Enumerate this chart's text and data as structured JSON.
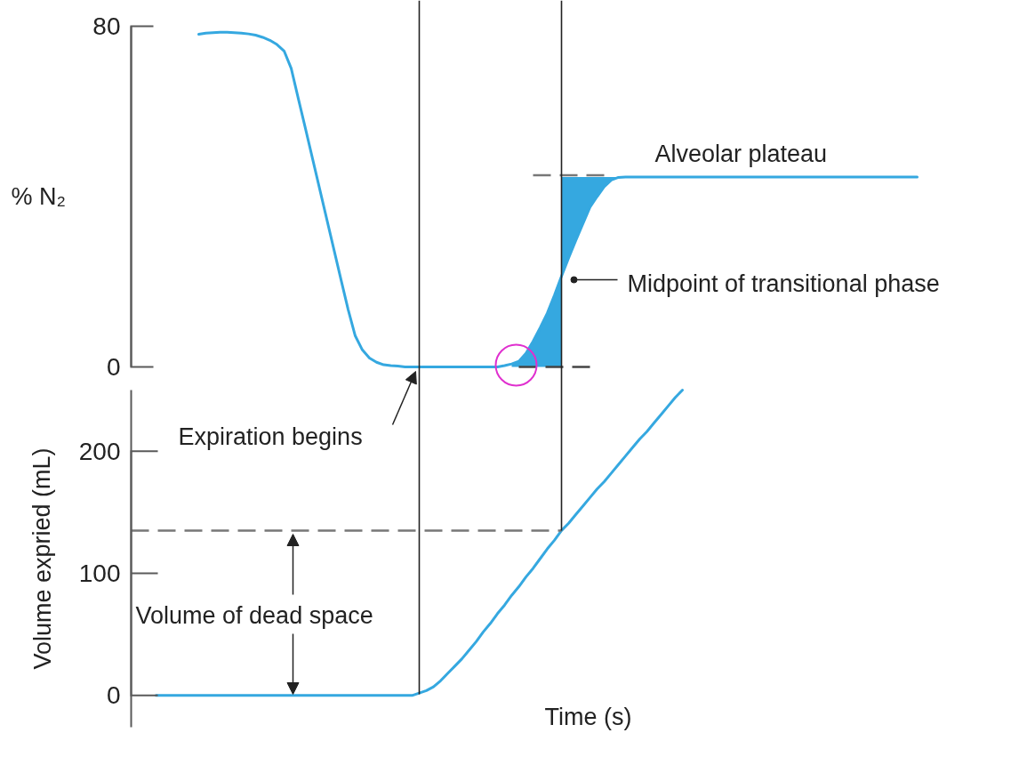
{
  "chart_data": [
    {
      "type": "line",
      "ylim": [
        0,
        80
      ],
      "yticks": [
        0,
        80
      ],
      "tick_labels": "y",
      "ylabel": "% N₂",
      "annotations": [
        "Alveolar plateau",
        "Midpoint of transitional phase",
        "Expiration begins"
      ],
      "categories": [
        null,
        null,
        null,
        null,
        null,
        null,
        null,
        null,
        null,
        null,
        null,
        null,
        null,
        null,
        null,
        null,
        null,
        null,
        null,
        null,
        null,
        null,
        null,
        null,
        null,
        null,
        null,
        null,
        null,
        null,
        null,
        null,
        null,
        null,
        null,
        null,
        null,
        null,
        null,
        null,
        null,
        null,
        null,
        null,
        null,
        null,
        null,
        null,
        null,
        null,
        null,
        null,
        null,
        null,
        null,
        null,
        null,
        null,
        null,
        null,
        null,
        null,
        null,
        null,
        null,
        null,
        null,
        null,
        null,
        null,
        null,
        null,
        null,
        null,
        null,
        null,
        null,
        null,
        null,
        null,
        null,
        null,
        null,
        null,
        null,
        null,
        null,
        null,
        null,
        null,
        null,
        null,
        null,
        null,
        null,
        null,
        null,
        null,
        null,
        null,
        null,
        null,
        null,
        null,
        null,
        null,
        null,
        null,
        null,
        null,
        null
      ],
      "series": [
        {
          "color": "#35a8e0",
          "values": [
            null,
            null,
            null,
            null,
            null,
            null,
            null,
            null,
            null,
            78.1,
            78.4,
            78.5,
            78.6,
            78.6,
            78.5,
            78.4,
            78.2,
            77.9,
            77.4,
            76.7,
            75.7,
            74.2,
            70.1,
            63.0,
            56.0,
            48.9,
            41.8,
            34.7,
            27.6,
            20.5,
            13.5,
            7.3,
            4.0,
            2.1,
            1.1,
            0.5,
            0.3,
            0.2,
            0,
            0,
            0,
            0,
            0,
            0,
            0,
            0,
            0,
            0,
            0,
            0,
            0,
            0,
            0.3,
            0.7,
            1.3,
            3.2,
            6.0,
            9.2,
            12.6,
            16.8,
            21.3,
            25.6,
            29.7,
            33.6,
            37.5,
            40.0,
            42.3,
            43.9,
            44.5,
            44.6,
            44.6,
            44.6,
            44.6,
            44.6,
            44.6,
            44.6,
            44.6,
            44.6,
            44.6,
            44.6,
            44.6,
            44.6,
            44.6,
            44.6,
            44.6,
            44.6,
            44.6,
            44.6,
            44.6,
            44.6,
            44.6,
            44.6,
            44.6,
            44.6,
            44.6,
            44.6,
            44.6,
            44.6,
            44.6,
            44.6,
            44.6,
            44.6,
            44.6,
            44.6,
            44.6,
            44.6,
            44.6,
            44.6,
            44.6,
            44.6,
            44.6
          ],
          "lower": [
            null,
            null,
            null,
            null,
            null,
            null,
            null,
            null,
            null,
            null,
            null,
            null,
            null,
            null,
            null,
            null,
            null,
            null,
            null,
            null,
            null,
            null,
            null,
            null,
            null,
            null,
            null,
            null,
            null,
            null,
            null,
            null,
            null,
            null,
            null,
            null,
            null,
            null,
            null,
            null,
            null,
            null,
            null,
            null,
            null,
            null,
            null,
            null,
            null,
            null,
            null,
            null,
            null,
            null,
            null,
            null,
            null,
            null,
            null,
            null,
            21.3,
            25.6,
            29.7,
            33.6,
            37.5,
            40.0,
            42.3,
            43.9,
            44.5,
            null,
            null,
            null,
            null,
            null,
            null,
            null,
            null,
            null,
            null,
            null,
            null,
            null,
            null,
            null,
            null,
            null,
            null,
            null,
            null,
            null,
            null,
            null,
            null,
            null,
            null,
            null,
            null,
            null,
            null,
            null,
            null,
            null,
            null,
            null,
            null,
            null,
            null,
            null,
            null,
            null,
            null
          ],
          "upper": [
            null,
            null,
            null,
            null,
            null,
            null,
            null,
            null,
            null,
            null,
            null,
            null,
            null,
            null,
            null,
            null,
            null,
            null,
            null,
            null,
            null,
            null,
            null,
            null,
            null,
            null,
            null,
            null,
            null,
            null,
            null,
            null,
            null,
            null,
            null,
            null,
            null,
            null,
            null,
            null,
            null,
            null,
            null,
            null,
            null,
            null,
            null,
            null,
            null,
            null,
            null,
            null,
            null,
            null,
            null,
            null,
            null,
            null,
            null,
            null,
            44.6,
            44.6,
            44.6,
            44.6,
            44.6,
            44.6,
            44.6,
            44.6,
            44.6,
            null,
            null,
            null,
            null,
            null,
            null,
            null,
            null,
            null,
            null,
            null,
            null,
            null,
            null,
            null,
            null,
            null,
            null,
            null,
            null,
            null,
            null,
            null,
            null,
            null,
            null,
            null,
            null,
            null,
            null,
            null,
            null,
            null,
            null,
            null,
            null,
            null,
            null,
            null,
            null,
            null,
            null
          ]
        },
        {
          "type": "area",
          "color": "#35a8e0",
          "values": [
            null,
            null,
            null,
            null,
            null,
            null,
            null,
            null,
            null,
            null,
            null,
            null,
            null,
            null,
            null,
            null,
            null,
            null,
            null,
            null,
            null,
            null,
            null,
            null,
            null,
            null,
            null,
            null,
            null,
            null,
            null,
            null,
            null,
            null,
            null,
            null,
            null,
            null,
            null,
            null,
            null,
            null,
            null,
            null,
            null,
            null,
            null,
            null,
            null,
            null,
            null,
            null,
            null,
            0.7,
            1.3,
            3.2,
            6.0,
            9.2,
            12.6,
            16.8,
            21.3,
            null,
            null,
            null,
            null,
            null,
            null,
            null,
            null,
            null,
            null,
            null,
            null,
            null,
            null,
            null,
            null,
            null,
            null,
            null,
            null,
            null,
            null,
            null,
            null,
            null,
            null,
            null,
            null,
            null,
            null,
            null,
            null,
            null,
            null,
            null,
            null,
            null,
            null,
            null,
            null,
            null,
            null,
            null,
            null,
            null,
            null,
            null,
            null,
            null,
            null
          ]
        },
        {
          "color": "#777777",
          "line_style": "dashed",
          "values": [
            null,
            null,
            null,
            null,
            null,
            null,
            null,
            null,
            null,
            null,
            null,
            null,
            null,
            null,
            null,
            null,
            null,
            null,
            null,
            null,
            null,
            null,
            null,
            null,
            null,
            null,
            null,
            null,
            null,
            null,
            null,
            null,
            null,
            null,
            null,
            null,
            null,
            null,
            null,
            null,
            null,
            null,
            null,
            null,
            null,
            null,
            null,
            null,
            null,
            null,
            null,
            null,
            null,
            null,
            null,
            null,
            45.0,
            45.0,
            45.0,
            45.0,
            45.0,
            45.0,
            45.0,
            45.0,
            45.0,
            45.0,
            45.0,
            45.0,
            null,
            null,
            null,
            null,
            null,
            null,
            null,
            null,
            null,
            null,
            null,
            null,
            null,
            null,
            null,
            null,
            null,
            null,
            null,
            null,
            null,
            null,
            null,
            null,
            null,
            null,
            null,
            null,
            null,
            null,
            null,
            null,
            null,
            null,
            null,
            null,
            null,
            null,
            null,
            null,
            null,
            null,
            null
          ]
        },
        {
          "color": "#444444",
          "line_style": "dashed",
          "values": [
            null,
            null,
            null,
            null,
            null,
            null,
            null,
            null,
            null,
            null,
            null,
            null,
            null,
            null,
            null,
            null,
            null,
            null,
            null,
            null,
            null,
            null,
            null,
            null,
            null,
            null,
            null,
            null,
            null,
            null,
            null,
            null,
            null,
            null,
            null,
            null,
            null,
            null,
            null,
            null,
            null,
            null,
            null,
            null,
            null,
            null,
            null,
            null,
            null,
            null,
            null,
            null,
            null,
            null,
            0,
            0,
            0,
            0,
            0,
            0,
            0,
            0,
            0,
            0,
            0,
            null,
            null,
            null,
            null,
            null,
            null,
            null,
            null,
            null,
            null,
            null,
            null,
            null,
            null,
            null,
            null,
            null,
            null,
            null,
            null,
            null,
            null,
            null,
            null,
            null,
            null,
            null,
            null,
            null,
            null,
            null,
            null,
            null,
            null,
            null,
            null,
            null,
            null,
            null,
            null,
            null,
            null,
            null,
            null,
            null,
            null
          ]
        }
      ]
    },
    {
      "type": "line",
      "ylim": [
        -26,
        250
      ],
      "yticks": [
        0,
        100,
        200
      ],
      "tick_labels": "y",
      "xlabel": "Time (s)",
      "ylabel": "Volume expried (mL)",
      "annotations": [
        "Volume of dead space"
      ],
      "ref_lines": [
        {
          "axis": "y",
          "value": 135,
          "color": "#777777",
          "line_style": "dashed"
        }
      ],
      "categories": [
        null,
        null,
        null,
        null,
        null,
        null,
        null,
        null,
        null,
        null,
        null,
        null,
        null,
        null,
        null,
        null,
        null,
        null,
        null,
        null,
        null,
        null,
        null,
        null,
        null,
        null,
        null,
        null,
        null,
        null,
        null,
        null,
        null,
        null,
        null,
        null,
        null,
        null,
        null,
        null,
        null,
        null,
        null,
        null,
        null,
        null,
        null,
        null,
        null,
        null,
        null,
        null,
        null,
        null,
        null,
        null,
        null,
        null,
        null,
        null,
        null,
        null,
        null,
        null,
        null,
        null,
        null,
        null,
        null,
        null,
        null,
        null,
        null,
        null,
        null,
        null,
        null,
        null,
        null,
        null,
        null,
        null,
        null,
        null,
        null,
        null,
        null,
        null,
        null,
        null,
        null,
        null,
        null,
        null,
        null,
        null,
        null,
        null,
        null,
        null,
        null,
        null,
        null,
        null,
        null,
        null,
        null,
        null,
        null,
        null,
        null
      ],
      "series": [
        {
          "color": "#35a8e0",
          "values": [
            null,
            null,
            null,
            0,
            0,
            0,
            0,
            0,
            0,
            0,
            0,
            0,
            0,
            0,
            0,
            0,
            0,
            0,
            0,
            0,
            0,
            0,
            0,
            0,
            0,
            0,
            0,
            0,
            0,
            0,
            0,
            0,
            0,
            0,
            0,
            0,
            0,
            0,
            0,
            0,
            2,
            4,
            7,
            12,
            18,
            24,
            30,
            37,
            44,
            52,
            59,
            67,
            74,
            82,
            89,
            97,
            104,
            112,
            120,
            127,
            135,
            141,
            148,
            155,
            162,
            169,
            175,
            182,
            189,
            196,
            203,
            210,
            216,
            223,
            230,
            237,
            244,
            250,
            null,
            null,
            null,
            null,
            null,
            null,
            null,
            null,
            null,
            null,
            null,
            null,
            null,
            null,
            null,
            null,
            null,
            null,
            null,
            null,
            null,
            null,
            null,
            null,
            null,
            null,
            null,
            null,
            null,
            null,
            null,
            null,
            null
          ]
        }
      ]
    }
  ]
}
